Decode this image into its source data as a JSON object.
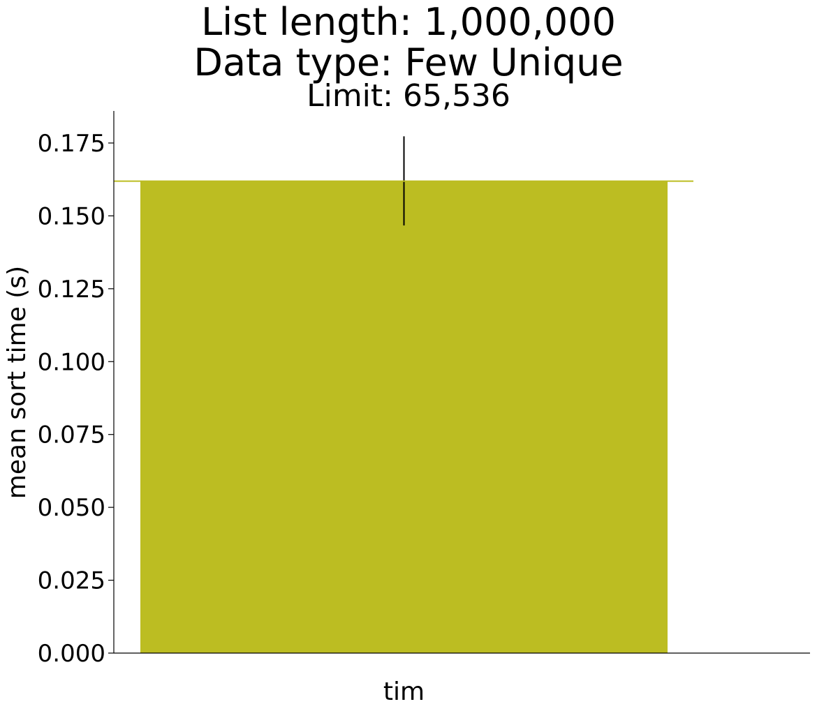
{
  "chart_data": {
    "type": "bar",
    "title_lines": [
      "List length: 1,000,000",
      "Data type: Few Unique"
    ],
    "subtitle": "Limit: 65,536",
    "xlabel": "",
    "ylabel": "mean sort time (s)",
    "categories": [
      "tim"
    ],
    "values": [
      0.1619
    ],
    "error": [
      {
        "low": 0.1467,
        "high": 0.1773
      }
    ],
    "reference_line": 0.1619,
    "ylim": [
      0,
      0.186
    ],
    "yticks": [
      0.0,
      0.025,
      0.05,
      0.075,
      0.1,
      0.125,
      0.15,
      0.175
    ],
    "ytick_labels": [
      "0.000",
      "0.025",
      "0.050",
      "0.075",
      "0.100",
      "0.125",
      "0.150",
      "0.175"
    ],
    "grid": false,
    "bar_color": "#bcbd22"
  }
}
